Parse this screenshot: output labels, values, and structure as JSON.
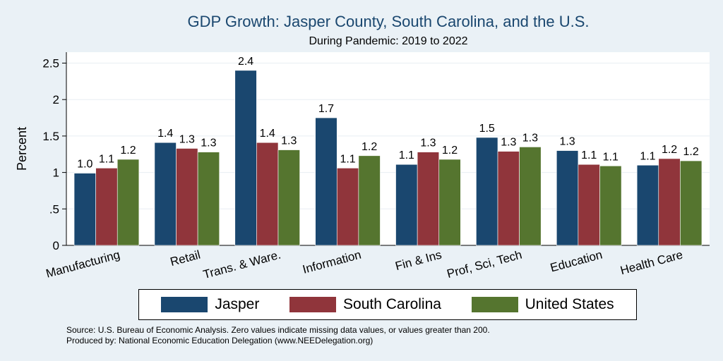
{
  "chart_data": {
    "type": "bar",
    "title": "GDP Growth: Jasper County, South Carolina, and the U.S.",
    "subtitle": "During Pandemic: 2019 to 2022",
    "xlabel": "",
    "ylabel": "Percent",
    "ylim": [
      0,
      2.65
    ],
    "yticks": [
      {
        "value": 0,
        "label": "0"
      },
      {
        "value": 0.5,
        "label": ".5"
      },
      {
        "value": 1,
        "label": "1"
      },
      {
        "value": 1.5,
        "label": "1.5"
      },
      {
        "value": 2,
        "label": "2"
      },
      {
        "value": 2.5,
        "label": "2.5"
      }
    ],
    "grid": true,
    "categories": [
      "Manufacturing",
      "Retail",
      "Trans. & Ware.",
      "Information",
      "Fin & Ins",
      "Prof, Sci, Tech",
      "Education",
      "Health Care"
    ],
    "series": [
      {
        "name": "Jasper",
        "color": "#1a476f",
        "values": [
          0.99,
          1.41,
          2.4,
          1.75,
          1.11,
          1.48,
          1.3,
          1.1
        ],
        "labels": [
          "1.0",
          "1.4",
          "2.4",
          "1.7",
          "1.1",
          "1.5",
          "1.3",
          "1.1"
        ]
      },
      {
        "name": "South Carolina",
        "color": "#90353b",
        "values": [
          1.06,
          1.33,
          1.41,
          1.06,
          1.28,
          1.29,
          1.11,
          1.19
        ],
        "labels": [
          "1.1",
          "1.3",
          "1.4",
          "1.1",
          "1.3",
          "1.3",
          "1.1",
          "1.2"
        ]
      },
      {
        "name": "United States",
        "color": "#55752f",
        "values": [
          1.18,
          1.28,
          1.31,
          1.23,
          1.18,
          1.35,
          1.09,
          1.16
        ],
        "labels": [
          "1.2",
          "1.3",
          "1.3",
          "1.2",
          "1.2",
          "1.3",
          "1.1",
          "1.2"
        ]
      }
    ],
    "legend_position": "bottom",
    "notes": [
      "Source: U.S. Bureau of Economic Analysis. Zero values indicate missing data values, or values greater than 200.",
      "Produced by: National Economic Education Delegation (www.NEEDelegation.org)"
    ]
  }
}
